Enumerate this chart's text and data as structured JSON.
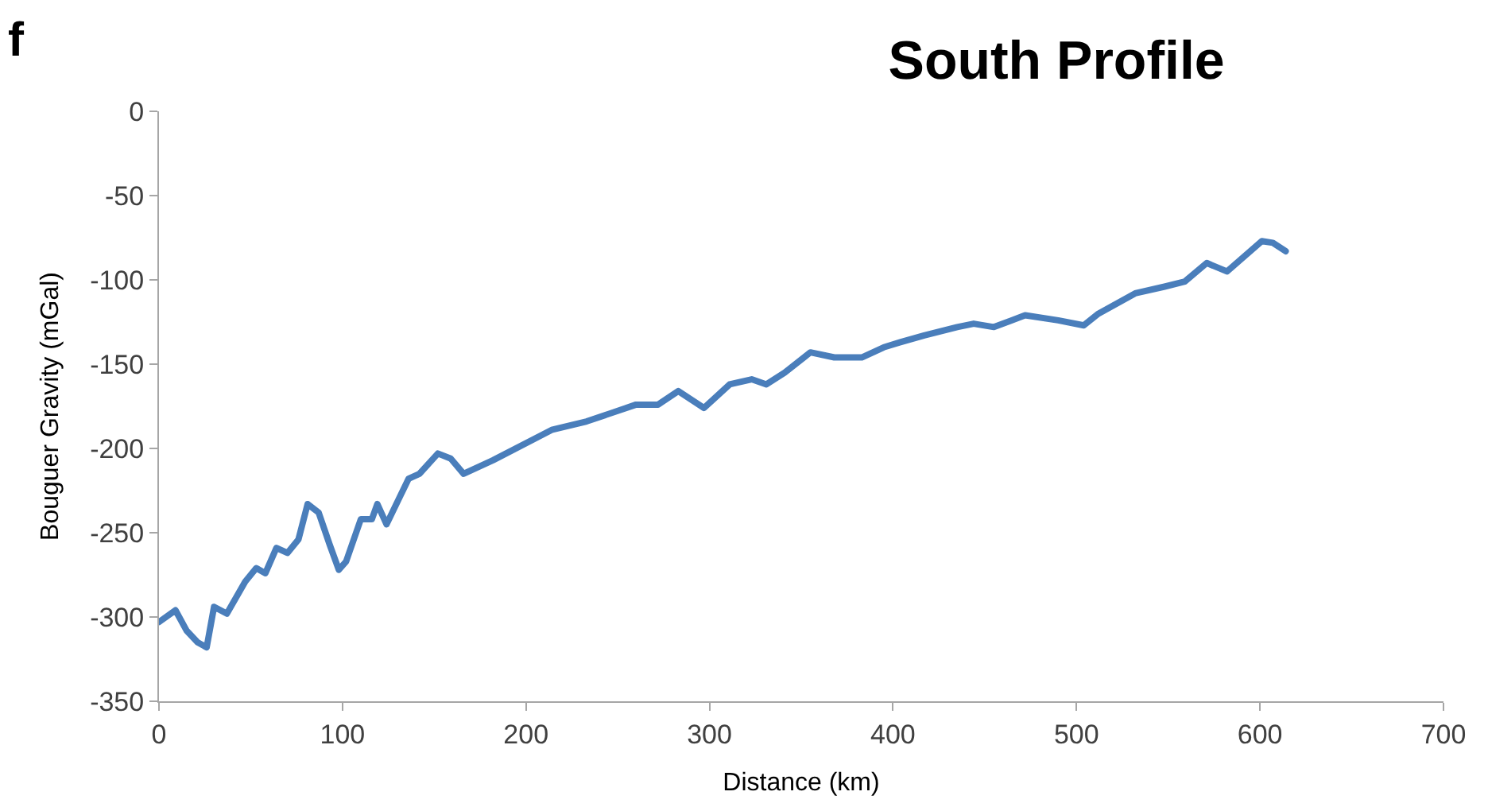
{
  "chart_data": {
    "type": "line",
    "title": "South Profile",
    "annotations": [
      "f"
    ],
    "xlabel": "Distance (km)",
    "ylabel": "Bouguer Gravity (mGal)",
    "x": [
      0,
      9,
      15,
      21,
      26,
      30,
      37,
      47,
      53,
      58,
      64,
      70,
      76,
      81,
      87,
      93,
      98,
      102,
      110,
      116,
      119,
      124,
      136,
      142,
      152,
      159,
      166,
      182,
      214,
      233,
      260,
      272,
      283,
      297,
      311,
      323,
      331,
      341,
      355,
      368,
      383,
      395,
      404,
      417,
      435,
      444,
      455,
      472,
      490,
      504,
      512,
      532,
      548,
      559,
      571,
      582,
      601,
      607,
      614
    ],
    "series": [
      {
        "color": "#4a7ebb",
        "values": [
          -303,
          -296,
          -308,
          -315,
          -318,
          -294,
          -298,
          -279,
          -271,
          -274,
          -259,
          -262,
          -254,
          -233,
          -238,
          -257,
          -272,
          -267,
          -242,
          -242,
          -233,
          -245,
          -218,
          -215,
          -203,
          -206,
          -215,
          -207,
          -189,
          -184,
          -174,
          -174,
          -166,
          -176,
          -162,
          -159,
          -162,
          -155,
          -143,
          -146,
          -146,
          -140,
          -137,
          -133,
          -128,
          -126,
          -128,
          -121,
          -124,
          -127,
          -120,
          -108,
          -104,
          -101,
          -90,
          -95,
          -77,
          -78,
          -83
        ]
      }
    ],
    "xlim": [
      0,
      700
    ],
    "xticks": [
      0,
      100,
      200,
      300,
      400,
      500,
      600,
      700
    ],
    "ylim": [
      -350,
      0
    ],
    "yticks": [
      -350,
      -300,
      -250,
      -200,
      -150,
      -100,
      -50,
      0
    ],
    "marker": "none",
    "line_style": "solid"
  }
}
